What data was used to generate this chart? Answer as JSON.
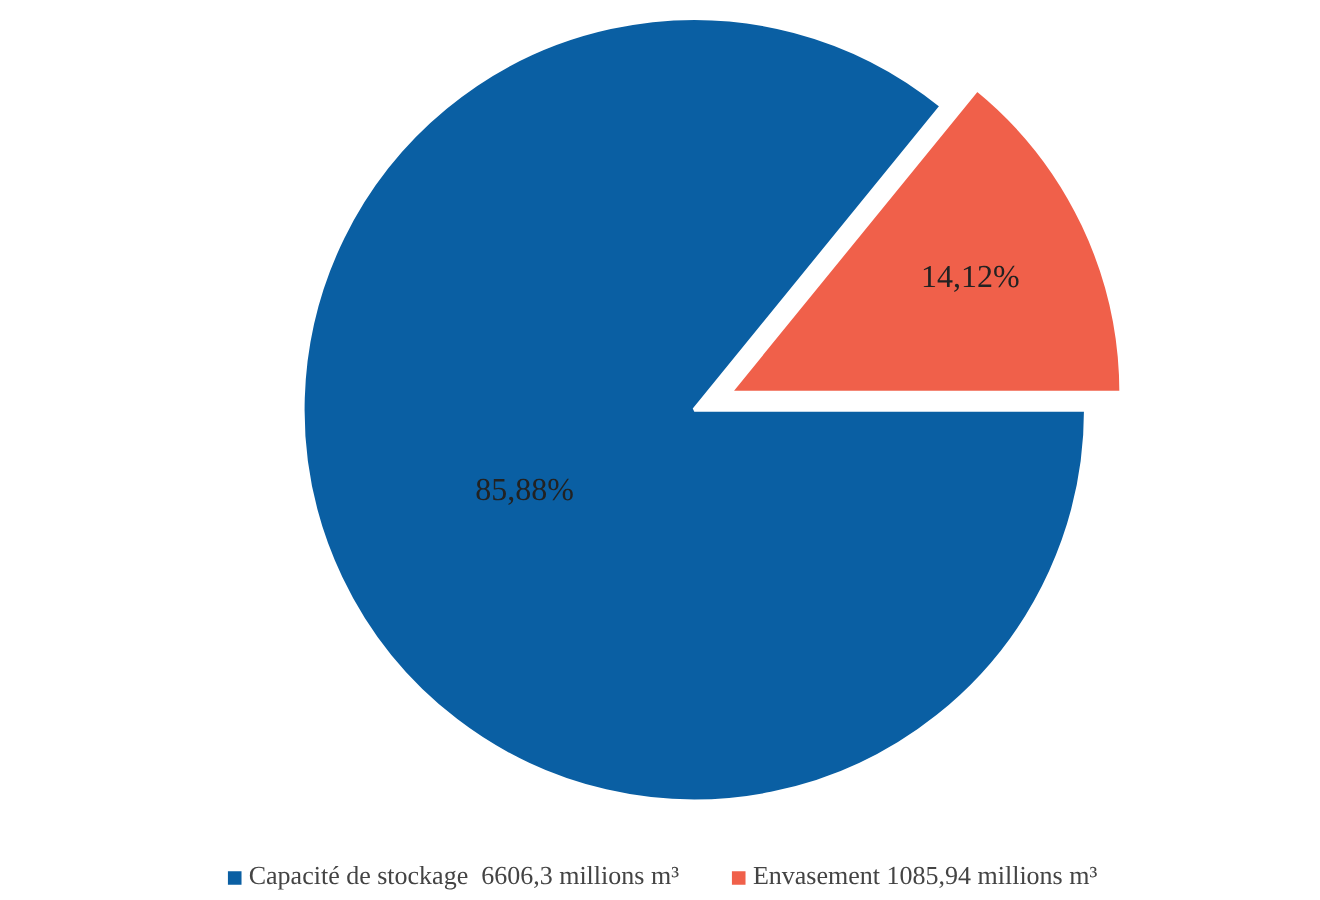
{
  "chart_data": {
    "type": "pie",
    "categories": [
      "Capacité de stockage  6606,3 millions m³",
      "Envasement 1085,94 millions m³"
    ],
    "values": [
      85.88,
      14.12
    ],
    "value_labels": [
      "85,88%",
      "14,12%"
    ],
    "colors": [
      "#0a5fa3",
      "#f0604a"
    ],
    "legend": "bottom"
  }
}
